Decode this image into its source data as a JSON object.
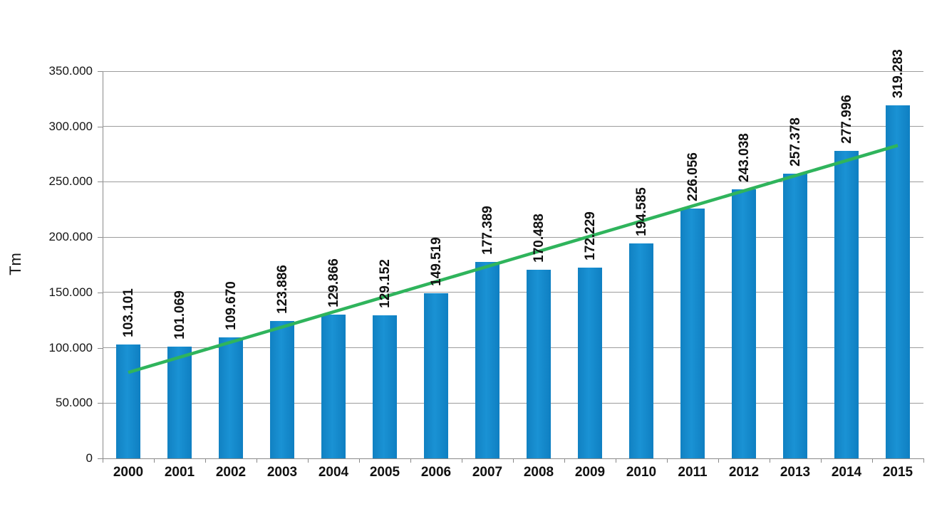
{
  "chart_data": {
    "type": "bar",
    "title": "",
    "xlabel": "",
    "ylabel": "Tm",
    "legend_position": "none",
    "grid": true,
    "ylim": [
      0,
      350000
    ],
    "y_tick_values": [
      0,
      50000,
      100000,
      150000,
      200000,
      250000,
      300000,
      350000
    ],
    "y_tick_labels": [
      "0",
      "50.000",
      "100.000",
      "150.000",
      "200.000",
      "250.000",
      "300.000",
      "350.000"
    ],
    "categories": [
      "2000",
      "2001",
      "2002",
      "2003",
      "2004",
      "2005",
      "2006",
      "2007",
      "2008",
      "2009",
      "2010",
      "2011",
      "2012",
      "2013",
      "2014",
      "2015"
    ],
    "series": [
      {
        "name": "Tm",
        "values": [
          103101,
          101069,
          109670,
          123886,
          129866,
          129152,
          149519,
          177389,
          170488,
          172229,
          194585,
          226056,
          243038,
          257378,
          277996,
          319283
        ]
      }
    ],
    "value_labels": [
      "103.101",
      "101.069",
      "109.670",
      "123.886",
      "129.866",
      "129.152",
      "149.519",
      "177.389",
      "170.488",
      "172.229",
      "194.585",
      "226.056",
      "243.038",
      "257.378",
      "277.996",
      "319.283"
    ],
    "trendline": {
      "type": "linear",
      "start_value": 77700,
      "end_value": 282900,
      "color": "#2fb45c"
    },
    "bar_color": "#1086c9",
    "grid_color": "#9c9c9c",
    "axis_color": "#8a8a8a"
  }
}
